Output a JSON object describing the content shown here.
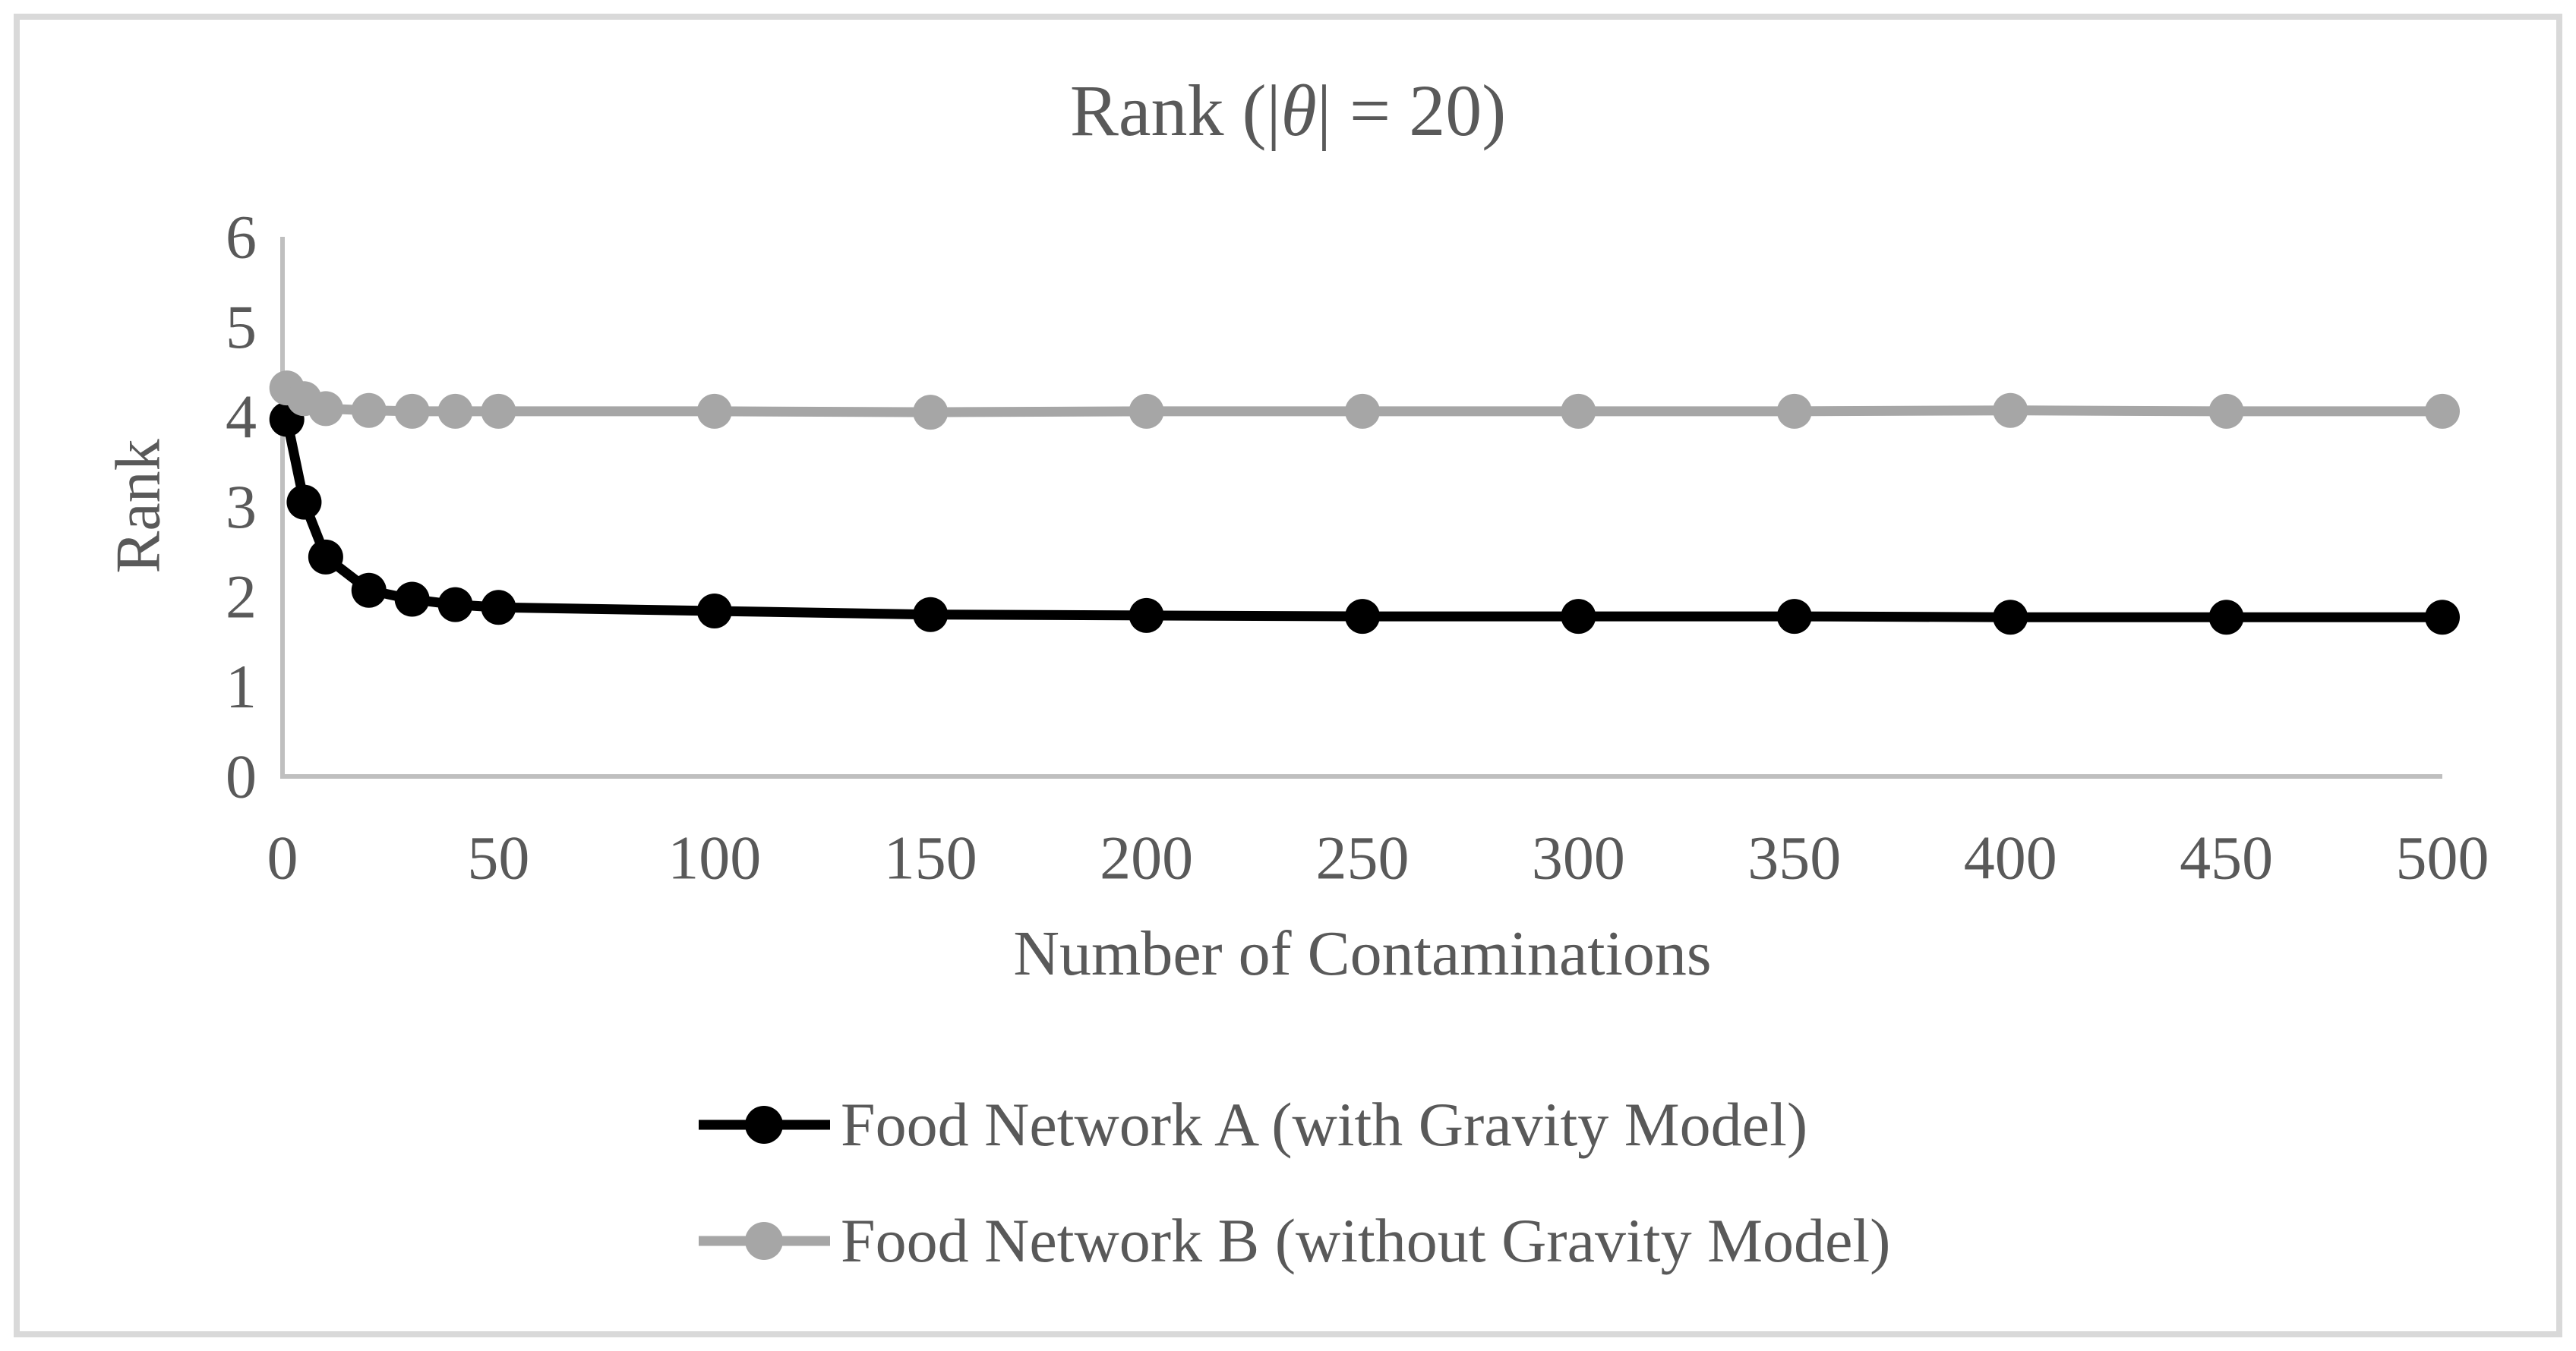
{
  "style": {
    "background": "#ffffff",
    "border_color": "#d9d9d9",
    "axis_color": "#bfbfbf",
    "text_color": "#595959"
  },
  "chart_data": {
    "type": "line",
    "title": "Rank (|θ| = 20)",
    "title_parts": {
      "prefix": "Rank (|",
      "symbol": "θ",
      "suffix": "| = 20)"
    },
    "xlabel": "Number of Contaminations",
    "ylabel": "Rank",
    "xlim": [
      0,
      500
    ],
    "ylim": [
      0,
      6
    ],
    "x_ticks": [
      0,
      50,
      100,
      150,
      200,
      250,
      300,
      350,
      400,
      450,
      500
    ],
    "y_ticks": [
      0,
      1,
      2,
      3,
      4,
      5,
      6
    ],
    "grid": false,
    "marker": "circle",
    "legend_position": "bottom",
    "x": [
      1,
      5,
      10,
      20,
      30,
      40,
      50,
      100,
      150,
      200,
      250,
      300,
      350,
      400,
      450,
      500
    ],
    "series": [
      {
        "name": "Food Network A (with Gravity Model)",
        "color": "#000000",
        "values": [
          3.97,
          3.05,
          2.44,
          2.07,
          1.97,
          1.91,
          1.88,
          1.84,
          1.8,
          1.79,
          1.78,
          1.78,
          1.78,
          1.77,
          1.77,
          1.77
        ]
      },
      {
        "name": "Food Network B (without Gravity Model)",
        "color": "#a6a6a6",
        "values": [
          4.32,
          4.2,
          4.09,
          4.07,
          4.06,
          4.06,
          4.06,
          4.06,
          4.05,
          4.06,
          4.06,
          4.06,
          4.06,
          4.07,
          4.06,
          4.06
        ]
      }
    ]
  }
}
